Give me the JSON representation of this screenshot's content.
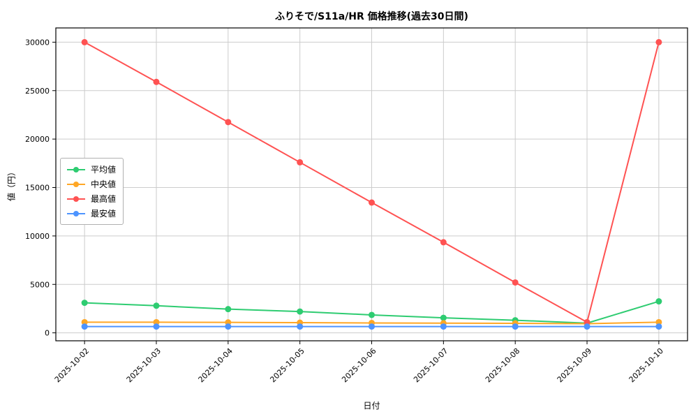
{
  "chart_data": {
    "type": "line",
    "title": "ふりそで/S11a/HR 価格推移(過去30日間)",
    "xlabel": "日付",
    "ylabel": "値（円）",
    "categories": [
      "2025-10-02",
      "2025-10-03",
      "2025-10-04",
      "2025-10-05",
      "2025-10-06",
      "2025-10-07",
      "2025-10-08",
      "2025-10-09",
      "2025-10-10"
    ],
    "series": [
      {
        "name": "平均値",
        "color": "#2ecc71",
        "values": [
          3100,
          2800,
          2450,
          2200,
          1850,
          1550,
          1300,
          1000,
          3250
        ]
      },
      {
        "name": "中央値",
        "color": "#ffa726",
        "values": [
          1100,
          1100,
          1080,
          1050,
          1020,
          1000,
          980,
          950,
          1100
        ]
      },
      {
        "name": "最高値",
        "color": "#ff5252",
        "values": [
          30000,
          25900,
          21750,
          17600,
          13450,
          9350,
          5200,
          1100,
          30000
        ]
      },
      {
        "name": "最安値",
        "color": "#4d94ff",
        "values": [
          650,
          650,
          650,
          650,
          650,
          650,
          650,
          650,
          650
        ]
      }
    ],
    "yticks": [
      0,
      5000,
      10000,
      15000,
      20000,
      25000,
      30000
    ],
    "ylim": [
      -820,
      31470
    ],
    "grid": true,
    "legend_position": "center-left",
    "colors": {
      "grid": "#cccccc",
      "spine": "#000000",
      "background": "#ffffff"
    }
  }
}
